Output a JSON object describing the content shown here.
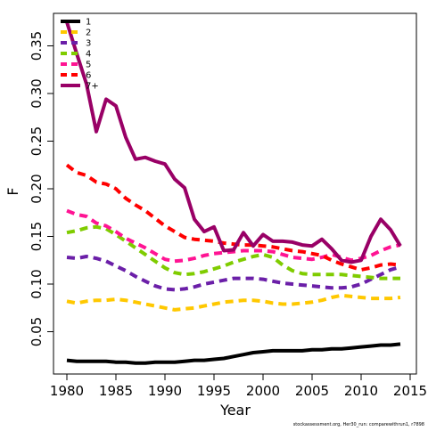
{
  "chart_data": {
    "type": "line",
    "title": "",
    "xlabel": "Year",
    "ylabel": "F",
    "xlim": [
      1979,
      2015
    ],
    "ylim": [
      0.0,
      0.38
    ],
    "xticks": [
      1980,
      1985,
      1990,
      1995,
      2000,
      2005,
      2010,
      2015
    ],
    "yticks": [
      0.05,
      0.1,
      0.15,
      0.2,
      0.25,
      0.3,
      0.35
    ],
    "ytick_labels": [
      "0.05",
      "0.10",
      "0.15",
      "0.20",
      "0.25",
      "0.30",
      "0.35"
    ],
    "grid": false,
    "legend_position": "top-left",
    "x": [
      1980,
      1981,
      1982,
      1983,
      1984,
      1985,
      1986,
      1987,
      1988,
      1989,
      1990,
      1991,
      1992,
      1993,
      1994,
      1995,
      1996,
      1997,
      1998,
      1999,
      2000,
      2001,
      2002,
      2003,
      2004,
      2005,
      2006,
      2007,
      2008,
      2009,
      2010,
      2011,
      2012,
      2013,
      2014
    ],
    "series": [
      {
        "name": "1",
        "color": "#000000",
        "dash": "solid",
        "values": [
          0.02,
          0.019,
          0.019,
          0.019,
          0.019,
          0.018,
          0.018,
          0.017,
          0.017,
          0.018,
          0.018,
          0.018,
          0.019,
          0.02,
          0.02,
          0.021,
          0.022,
          0.024,
          0.026,
          0.028,
          0.029,
          0.03,
          0.03,
          0.03,
          0.03,
          0.031,
          0.031,
          0.032,
          0.032,
          0.033,
          0.034,
          0.035,
          0.036,
          0.036,
          0.037
        ]
      },
      {
        "name": "2",
        "color": "#FFC800",
        "dash": "dash",
        "values": [
          0.082,
          0.08,
          0.082,
          0.083,
          0.083,
          0.084,
          0.083,
          0.081,
          0.079,
          0.077,
          0.075,
          0.073,
          0.074,
          0.075,
          0.077,
          0.079,
          0.081,
          0.082,
          0.083,
          0.083,
          0.082,
          0.08,
          0.079,
          0.079,
          0.08,
          0.081,
          0.083,
          0.086,
          0.088,
          0.087,
          0.086,
          0.085,
          0.085,
          0.085,
          0.086
        ]
      },
      {
        "name": "3",
        "color": "#6B1FA8",
        "dash": "dash",
        "values": [
          0.128,
          0.127,
          0.129,
          0.127,
          0.124,
          0.119,
          0.114,
          0.108,
          0.103,
          0.098,
          0.095,
          0.094,
          0.095,
          0.097,
          0.1,
          0.102,
          0.104,
          0.106,
          0.106,
          0.106,
          0.105,
          0.103,
          0.101,
          0.1,
          0.099,
          0.098,
          0.097,
          0.096,
          0.096,
          0.097,
          0.1,
          0.105,
          0.11,
          0.115,
          0.118
        ]
      },
      {
        "name": "4",
        "color": "#7FCC00",
        "dash": "dash",
        "values": [
          0.154,
          0.156,
          0.159,
          0.16,
          0.158,
          0.152,
          0.145,
          0.138,
          0.131,
          0.124,
          0.117,
          0.112,
          0.11,
          0.111,
          0.113,
          0.116,
          0.119,
          0.123,
          0.126,
          0.129,
          0.131,
          0.128,
          0.12,
          0.114,
          0.111,
          0.11,
          0.11,
          0.11,
          0.11,
          0.109,
          0.108,
          0.107,
          0.106,
          0.106,
          0.106
        ]
      },
      {
        "name": "5",
        "color": "#FF1493",
        "dash": "dash",
        "values": [
          0.177,
          0.173,
          0.171,
          0.164,
          0.161,
          0.155,
          0.148,
          0.143,
          0.138,
          0.132,
          0.126,
          0.124,
          0.125,
          0.127,
          0.13,
          0.132,
          0.133,
          0.134,
          0.135,
          0.135,
          0.135,
          0.134,
          0.131,
          0.128,
          0.127,
          0.126,
          0.128,
          0.131,
          0.128,
          0.125,
          0.127,
          0.13,
          0.135,
          0.139,
          0.141
        ]
      },
      {
        "name": "6",
        "color": "#FF0000",
        "dash": "dash",
        "values": [
          0.225,
          0.217,
          0.214,
          0.207,
          0.205,
          0.2,
          0.19,
          0.183,
          0.177,
          0.169,
          0.161,
          0.155,
          0.149,
          0.147,
          0.146,
          0.145,
          0.143,
          0.142,
          0.141,
          0.141,
          0.14,
          0.139,
          0.137,
          0.135,
          0.134,
          0.132,
          0.13,
          0.125,
          0.121,
          0.118,
          0.115,
          0.117,
          0.12,
          0.121,
          0.12
        ]
      },
      {
        "name": "7+",
        "color": "#990066",
        "dash": "solid",
        "values": [
          0.375,
          0.342,
          0.31,
          0.26,
          0.294,
          0.287,
          0.254,
          0.231,
          0.233,
          0.229,
          0.226,
          0.21,
          0.201,
          0.168,
          0.155,
          0.16,
          0.135,
          0.136,
          0.154,
          0.14,
          0.152,
          0.145,
          0.145,
          0.144,
          0.141,
          0.14,
          0.147,
          0.137,
          0.125,
          0.123,
          0.125,
          0.15,
          0.168,
          0.157,
          0.14
        ]
      }
    ]
  },
  "credit": "stockassessment.org, Her30_run: comparewithrun1, r7898"
}
